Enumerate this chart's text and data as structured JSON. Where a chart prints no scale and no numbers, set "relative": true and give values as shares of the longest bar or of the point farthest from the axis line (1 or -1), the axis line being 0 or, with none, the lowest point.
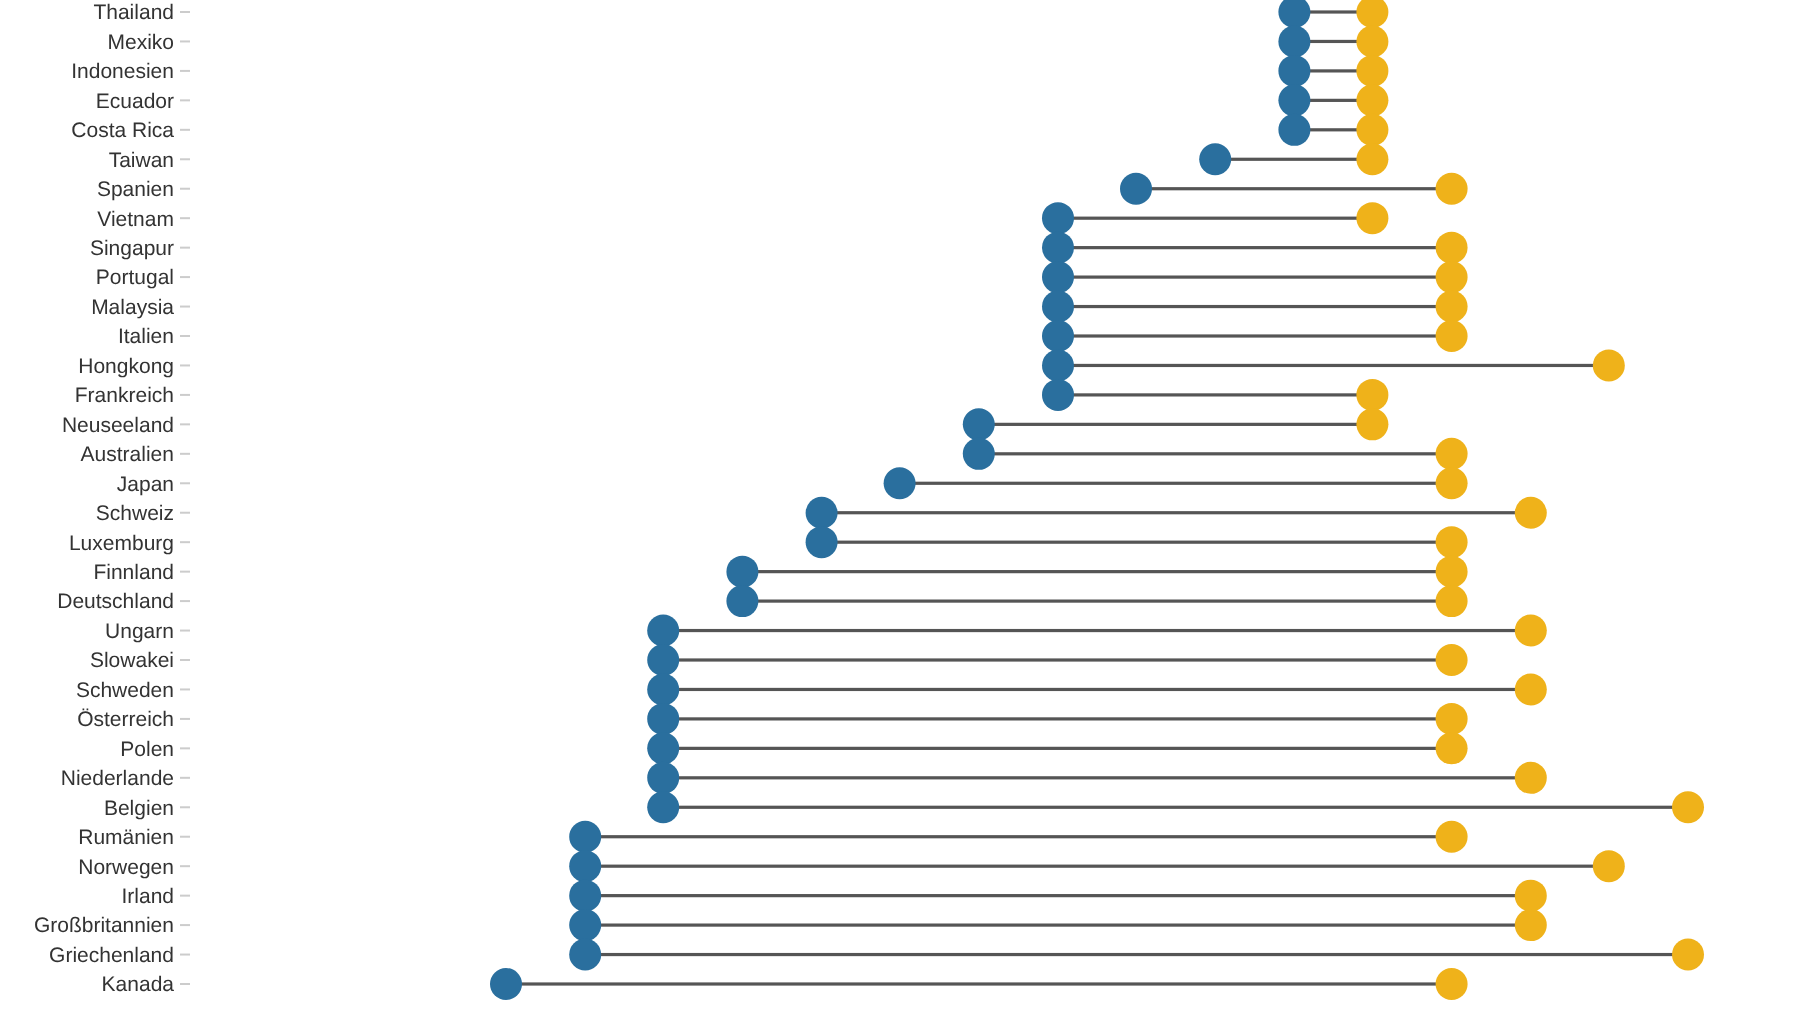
{
  "chart_data": {
    "type": "scatter",
    "orientation": "horizontal",
    "relative": true,
    "marker": "circle",
    "categories": [
      "Thailand",
      "Mexiko",
      "Indonesien",
      "Ecuador",
      "Costa Rica",
      "Taiwan",
      "Spanien",
      "Vietnam",
      "Singapur",
      "Portugal",
      "Malaysia",
      "Italien",
      "Hongkong",
      "Frankreich",
      "Neuseeland",
      "Australien",
      "Japan",
      "Schweiz",
      "Luxemburg",
      "Finnland",
      "Deutschland",
      "Ungarn",
      "Slowakei",
      "Schweden",
      "Österreich",
      "Polen",
      "Niederlande",
      "Belgien",
      "Rumänien",
      "Norwegen",
      "Irland",
      "Großbritannien",
      "Griechenland",
      "Kanada"
    ],
    "series": [
      {
        "color": "#2a6f9e",
        "values": [
          0.667,
          0.667,
          0.667,
          0.667,
          0.667,
          0.6,
          0.533,
          0.467,
          0.467,
          0.467,
          0.467,
          0.467,
          0.467,
          0.467,
          0.4,
          0.4,
          0.333,
          0.267,
          0.267,
          0.2,
          0.2,
          0.133,
          0.133,
          0.133,
          0.133,
          0.133,
          0.133,
          0.133,
          0.067,
          0.067,
          0.067,
          0.067,
          0.067,
          0
        ]
      },
      {
        "color": "#efb21a",
        "values": [
          0.733,
          0.733,
          0.733,
          0.733,
          0.733,
          0.733,
          0.8,
          0.733,
          0.8,
          0.8,
          0.8,
          0.8,
          0.933,
          0.733,
          0.733,
          0.8,
          0.8,
          0.867,
          0.8,
          0.8,
          0.8,
          0.867,
          0.8,
          0.867,
          0.8,
          0.8,
          0.867,
          1,
          0.8,
          0.933,
          0.867,
          0.867,
          1,
          0.8
        ]
      }
    ]
  }
}
